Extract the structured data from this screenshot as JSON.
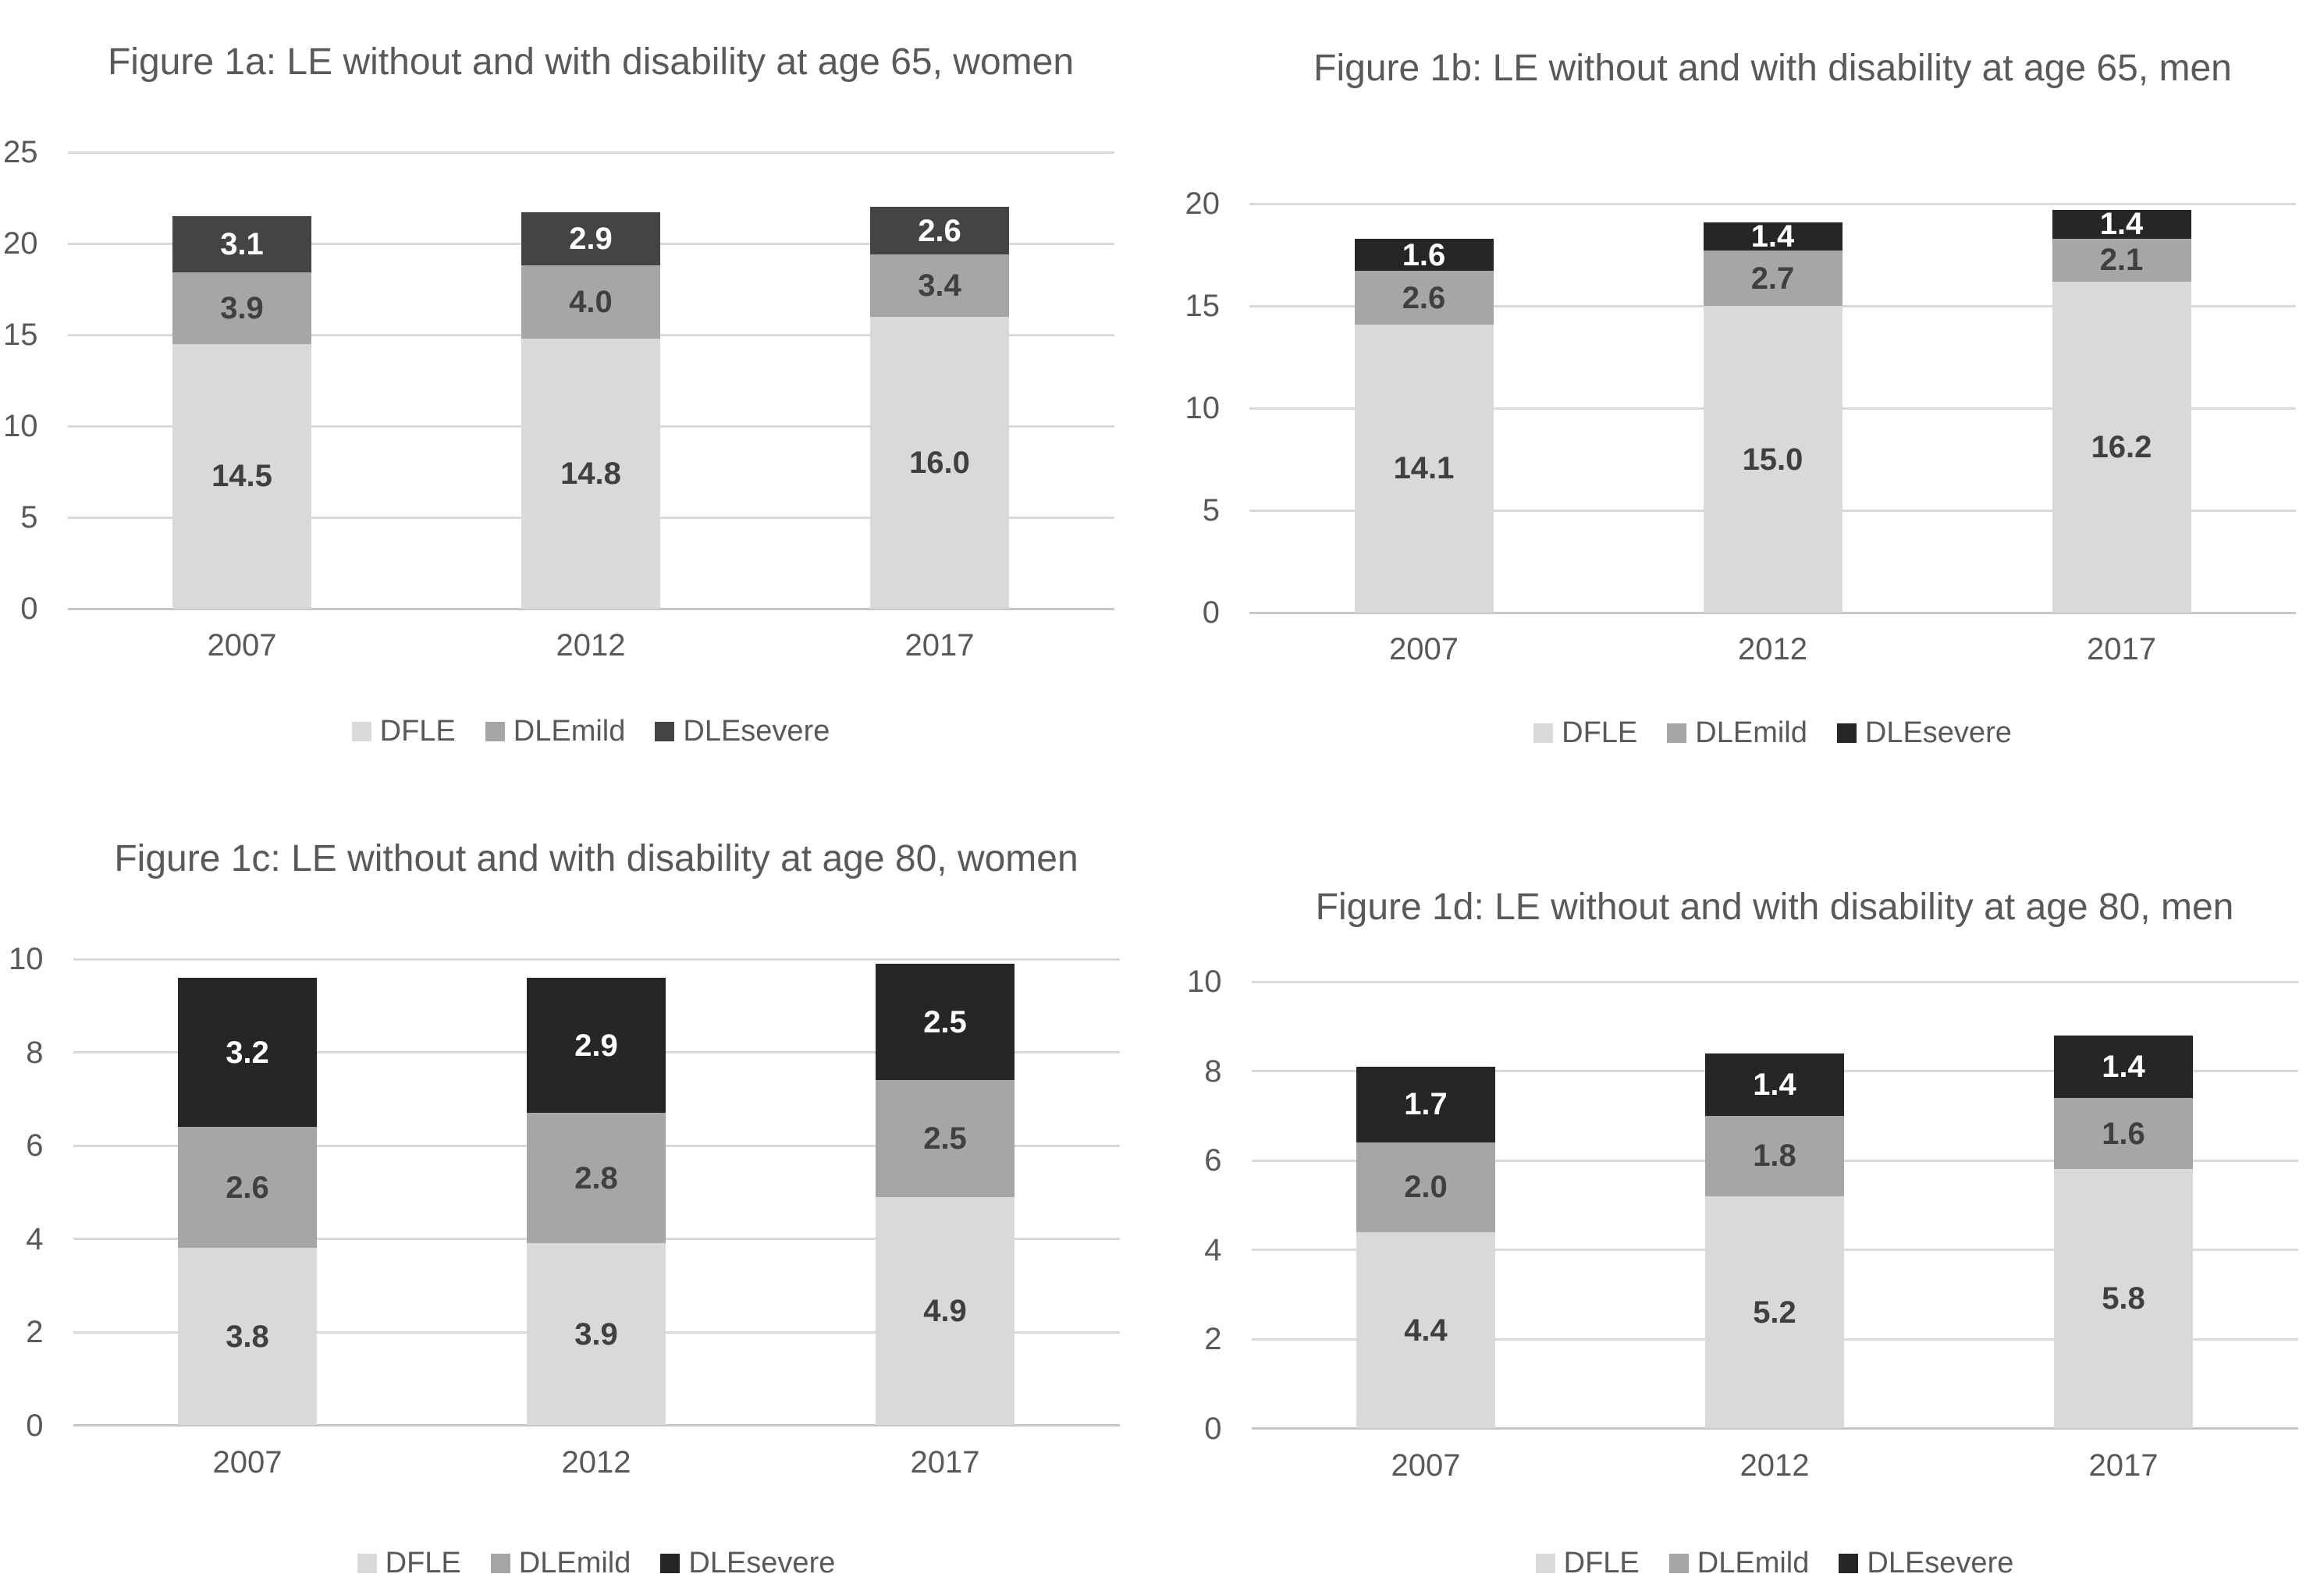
{
  "page": {
    "background": "#ffffff",
    "description_colors": {
      "title_text": "#595959",
      "axis_text": "#595959",
      "gridline": "#d9d9d9",
      "axis_line": "#c6c6c6"
    }
  },
  "chart_data": [
    {
      "type": "bar",
      "subtype": "stacked",
      "title": "Figure 1a: LE without and with disability at age 65, women",
      "categories": [
        "2007",
        "2012",
        "2017"
      ],
      "series": [
        {
          "name": "DFLE",
          "color": "#d9d9d9",
          "label_color": "#404040",
          "values": [
            14.5,
            14.8,
            16.0
          ]
        },
        {
          "name": "DLEmild",
          "color": "#a6a6a6",
          "label_color": "#404040",
          "values": [
            3.9,
            4.0,
            3.4
          ]
        },
        {
          "name": "DLEsevere",
          "color": "#444444",
          "label_color": "#ffffff",
          "values": [
            3.1,
            2.9,
            2.6
          ]
        }
      ],
      "xlabel": "",
      "ylabel": "",
      "ylim": [
        0,
        25
      ],
      "ytick_step": 5,
      "ytick_labels": [
        "0",
        "5",
        "10",
        "15",
        "20",
        "25"
      ],
      "grid": true,
      "legend_position": "bottom",
      "label_decimals": 1
    },
    {
      "type": "bar",
      "subtype": "stacked",
      "title": "Figure 1b: LE without and with disability at age 65, men",
      "categories": [
        "2007",
        "2012",
        "2017"
      ],
      "series": [
        {
          "name": "DFLE",
          "color": "#d9d9d9",
          "label_color": "#404040",
          "values": [
            14.1,
            15.0,
            16.2
          ]
        },
        {
          "name": "DLEmild",
          "color": "#a6a6a6",
          "label_color": "#404040",
          "values": [
            2.6,
            2.7,
            2.1
          ]
        },
        {
          "name": "DLEsevere",
          "color": "#262626",
          "label_color": "#ffffff",
          "values": [
            1.6,
            1.4,
            1.4
          ]
        }
      ],
      "xlabel": "",
      "ylabel": "",
      "ylim": [
        0,
        20
      ],
      "ytick_step": 5,
      "ytick_labels": [
        "0",
        "5",
        "10",
        "15",
        "20"
      ],
      "grid": true,
      "legend_position": "bottom",
      "label_decimals": 1
    },
    {
      "type": "bar",
      "subtype": "stacked",
      "title": "Figure 1c: LE without and with disability at age 80, women",
      "categories": [
        "2007",
        "2012",
        "2017"
      ],
      "series": [
        {
          "name": "DFLE",
          "color": "#d9d9d9",
          "label_color": "#404040",
          "values": [
            3.8,
            3.9,
            4.9
          ]
        },
        {
          "name": "DLEmild",
          "color": "#a6a6a6",
          "label_color": "#404040",
          "values": [
            2.6,
            2.8,
            2.5
          ]
        },
        {
          "name": "DLEsevere",
          "color": "#262626",
          "label_color": "#ffffff",
          "values": [
            3.2,
            2.9,
            2.5
          ]
        }
      ],
      "xlabel": "",
      "ylabel": "",
      "ylim": [
        0,
        10
      ],
      "ytick_step": 2,
      "ytick_labels": [
        "0",
        "2",
        "4",
        "6",
        "8",
        "10"
      ],
      "grid": true,
      "legend_position": "bottom",
      "label_decimals": 1
    },
    {
      "type": "bar",
      "subtype": "stacked",
      "title": "Figure 1d: LE without and with disability at age 80, men",
      "categories": [
        "2007",
        "2012",
        "2017"
      ],
      "series": [
        {
          "name": "DFLE",
          "color": "#d9d9d9",
          "label_color": "#404040",
          "values": [
            4.4,
            5.2,
            5.8
          ]
        },
        {
          "name": "DLEmild",
          "color": "#a6a6a6",
          "label_color": "#404040",
          "values": [
            2.0,
            1.8,
            1.6
          ]
        },
        {
          "name": "DLEsevere",
          "color": "#262626",
          "label_color": "#ffffff",
          "values": [
            1.7,
            1.4,
            1.4
          ]
        }
      ],
      "xlabel": "",
      "ylabel": "",
      "ylim": [
        0,
        10
      ],
      "ytick_step": 2,
      "ytick_labels": [
        "0",
        "2",
        "4",
        "6",
        "8",
        "10"
      ],
      "grid": true,
      "legend_position": "bottom",
      "label_decimals": 1
    }
  ]
}
